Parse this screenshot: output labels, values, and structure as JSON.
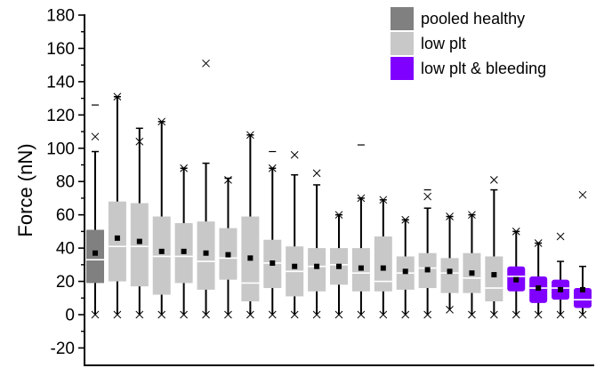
{
  "chart_data": {
    "type": "box",
    "title": "",
    "xlabel": "",
    "ylabel": "Force (nN)",
    "ylim": [
      -25,
      180
    ],
    "y_ticks": [
      -20,
      0,
      20,
      40,
      60,
      80,
      100,
      120,
      140,
      160,
      180
    ],
    "legend_position": "top-right",
    "colors": {
      "pooled healthy": "#808080",
      "low plt": "#c8c8c8",
      "low plt & bleeding": "#8000ff"
    },
    "legend": [
      {
        "label": "pooled healthy",
        "group": "pooled healthy"
      },
      {
        "label": "low plt",
        "group": "low plt"
      },
      {
        "label": "low plt & bleeding",
        "group": "low plt & bleeding"
      }
    ],
    "boxes": [
      {
        "group": "pooled healthy",
        "min": 0,
        "q1": 19,
        "median": 33,
        "q3": 51,
        "max": 98,
        "mean": 37,
        "p99": 107,
        "extreme": 126
      },
      {
        "group": "low plt",
        "min": 0,
        "q1": 20,
        "median": 41,
        "q3": 68,
        "max": 131,
        "mean": 46,
        "p99": 131
      },
      {
        "group": "low plt",
        "min": 0,
        "q1": 17,
        "median": 41,
        "q3": 67,
        "max": 112,
        "mean": 44,
        "p99": 104
      },
      {
        "group": "low plt",
        "min": 0,
        "q1": 12,
        "median": 35,
        "q3": 59,
        "max": 116,
        "mean": 38,
        "p99": 116
      },
      {
        "group": "low plt",
        "min": 0,
        "q1": 19,
        "median": 35,
        "q3": 55,
        "max": 88,
        "mean": 38,
        "p99": 88
      },
      {
        "group": "low plt",
        "min": 0,
        "q1": 15,
        "median": 32,
        "q3": 56,
        "max": 91,
        "mean": 37,
        "p99": 151
      },
      {
        "group": "low plt",
        "min": 0,
        "q1": 21,
        "median": 34,
        "q3": 52,
        "max": 82,
        "mean": 36,
        "p99": 81
      },
      {
        "group": "low plt",
        "min": 0,
        "q1": 8,
        "median": 19,
        "q3": 59,
        "max": 108,
        "mean": 34,
        "p99": 108
      },
      {
        "group": "low plt",
        "min": 0,
        "q1": 16,
        "median": 31,
        "q3": 45,
        "max": 88,
        "mean": 31,
        "p99": 88,
        "extreme": 98
      },
      {
        "group": "low plt",
        "min": 0,
        "q1": 11,
        "median": 26,
        "q3": 41,
        "max": 84,
        "mean": 29,
        "p99": 96
      },
      {
        "group": "low plt",
        "min": 0,
        "q1": 14,
        "median": 29,
        "q3": 40,
        "max": 78,
        "mean": 29,
        "p99": 85
      },
      {
        "group": "low plt",
        "min": 0,
        "q1": 18,
        "median": 30,
        "q3": 40,
        "max": 60,
        "mean": 29,
        "p99": 60
      },
      {
        "group": "low plt",
        "min": 0,
        "q1": 14,
        "median": 25,
        "q3": 40,
        "max": 70,
        "mean": 28,
        "p99": 70,
        "extreme": 102
      },
      {
        "group": "low plt",
        "min": 0,
        "q1": 14,
        "median": 20,
        "q3": 47,
        "max": 69,
        "mean": 28,
        "p99": 69
      },
      {
        "group": "low plt",
        "min": 0,
        "q1": 15,
        "median": 25,
        "q3": 35,
        "max": 57,
        "mean": 26,
        "p99": 57
      },
      {
        "group": "low plt",
        "min": 0,
        "q1": 16,
        "median": 28,
        "q3": 37,
        "max": 64,
        "mean": 27,
        "p99": 71,
        "extreme": 75
      },
      {
        "group": "low plt",
        "min": 3,
        "q1": 13,
        "median": 25,
        "q3": 34,
        "max": 59,
        "mean": 26,
        "p99": 59
      },
      {
        "group": "low plt",
        "min": 0,
        "q1": 13,
        "median": 22,
        "q3": 37,
        "max": 60,
        "mean": 25,
        "p99": 60
      },
      {
        "group": "low plt",
        "min": 0,
        "q1": 8,
        "median": 16,
        "q3": 35,
        "max": 75,
        "mean": 24,
        "p99": 81
      },
      {
        "group": "low plt & bleeding",
        "min": 0,
        "q1": 14,
        "median": 23,
        "q3": 29,
        "max": 50,
        "mean": 21,
        "p99": 50
      },
      {
        "group": "low plt & bleeding",
        "min": 0,
        "q1": 7,
        "median": 16,
        "q3": 23,
        "max": 43,
        "mean": 16,
        "p99": 43
      },
      {
        "group": "low plt & bleeding",
        "min": 0,
        "q1": 9,
        "median": 16,
        "q3": 21,
        "max": 32,
        "mean": 15,
        "p99": 47
      },
      {
        "group": "low plt & bleeding",
        "min": 0,
        "q1": 4,
        "median": 9,
        "q3": 16,
        "max": 29,
        "mean": 15,
        "p99": 72
      }
    ]
  }
}
